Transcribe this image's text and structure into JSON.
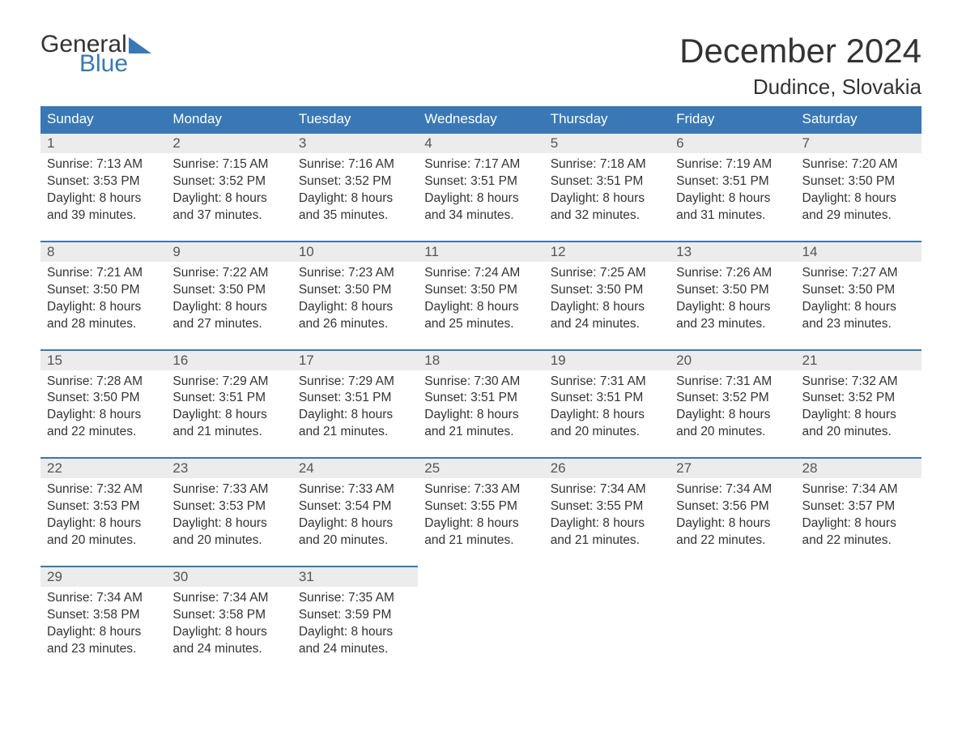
{
  "logo": {
    "line1": "General",
    "line2": "Blue"
  },
  "title": "December 2024",
  "location": "Dudince, Slovakia",
  "colors": {
    "header_bg": "#3a78b5",
    "header_text": "#ffffff",
    "daynum_bg": "#ececec",
    "daynum_text": "#555555",
    "body_text": "#333333",
    "row_border": "#3a78b5",
    "page_bg": "#ffffff",
    "logo_accent": "#3a78b5"
  },
  "daysOfWeek": [
    "Sunday",
    "Monday",
    "Tuesday",
    "Wednesday",
    "Thursday",
    "Friday",
    "Saturday"
  ],
  "weeks": [
    [
      {
        "n": "1",
        "sr": "7:13 AM",
        "ss": "3:53 PM",
        "dl": "8 hours and 39 minutes."
      },
      {
        "n": "2",
        "sr": "7:15 AM",
        "ss": "3:52 PM",
        "dl": "8 hours and 37 minutes."
      },
      {
        "n": "3",
        "sr": "7:16 AM",
        "ss": "3:52 PM",
        "dl": "8 hours and 35 minutes."
      },
      {
        "n": "4",
        "sr": "7:17 AM",
        "ss": "3:51 PM",
        "dl": "8 hours and 34 minutes."
      },
      {
        "n": "5",
        "sr": "7:18 AM",
        "ss": "3:51 PM",
        "dl": "8 hours and 32 minutes."
      },
      {
        "n": "6",
        "sr": "7:19 AM",
        "ss": "3:51 PM",
        "dl": "8 hours and 31 minutes."
      },
      {
        "n": "7",
        "sr": "7:20 AM",
        "ss": "3:50 PM",
        "dl": "8 hours and 29 minutes."
      }
    ],
    [
      {
        "n": "8",
        "sr": "7:21 AM",
        "ss": "3:50 PM",
        "dl": "8 hours and 28 minutes."
      },
      {
        "n": "9",
        "sr": "7:22 AM",
        "ss": "3:50 PM",
        "dl": "8 hours and 27 minutes."
      },
      {
        "n": "10",
        "sr": "7:23 AM",
        "ss": "3:50 PM",
        "dl": "8 hours and 26 minutes."
      },
      {
        "n": "11",
        "sr": "7:24 AM",
        "ss": "3:50 PM",
        "dl": "8 hours and 25 minutes."
      },
      {
        "n": "12",
        "sr": "7:25 AM",
        "ss": "3:50 PM",
        "dl": "8 hours and 24 minutes."
      },
      {
        "n": "13",
        "sr": "7:26 AM",
        "ss": "3:50 PM",
        "dl": "8 hours and 23 minutes."
      },
      {
        "n": "14",
        "sr": "7:27 AM",
        "ss": "3:50 PM",
        "dl": "8 hours and 23 minutes."
      }
    ],
    [
      {
        "n": "15",
        "sr": "7:28 AM",
        "ss": "3:50 PM",
        "dl": "8 hours and 22 minutes."
      },
      {
        "n": "16",
        "sr": "7:29 AM",
        "ss": "3:51 PM",
        "dl": "8 hours and 21 minutes."
      },
      {
        "n": "17",
        "sr": "7:29 AM",
        "ss": "3:51 PM",
        "dl": "8 hours and 21 minutes."
      },
      {
        "n": "18",
        "sr": "7:30 AM",
        "ss": "3:51 PM",
        "dl": "8 hours and 21 minutes."
      },
      {
        "n": "19",
        "sr": "7:31 AM",
        "ss": "3:51 PM",
        "dl": "8 hours and 20 minutes."
      },
      {
        "n": "20",
        "sr": "7:31 AM",
        "ss": "3:52 PM",
        "dl": "8 hours and 20 minutes."
      },
      {
        "n": "21",
        "sr": "7:32 AM",
        "ss": "3:52 PM",
        "dl": "8 hours and 20 minutes."
      }
    ],
    [
      {
        "n": "22",
        "sr": "7:32 AM",
        "ss": "3:53 PM",
        "dl": "8 hours and 20 minutes."
      },
      {
        "n": "23",
        "sr": "7:33 AM",
        "ss": "3:53 PM",
        "dl": "8 hours and 20 minutes."
      },
      {
        "n": "24",
        "sr": "7:33 AM",
        "ss": "3:54 PM",
        "dl": "8 hours and 20 minutes."
      },
      {
        "n": "25",
        "sr": "7:33 AM",
        "ss": "3:55 PM",
        "dl": "8 hours and 21 minutes."
      },
      {
        "n": "26",
        "sr": "7:34 AM",
        "ss": "3:55 PM",
        "dl": "8 hours and 21 minutes."
      },
      {
        "n": "27",
        "sr": "7:34 AM",
        "ss": "3:56 PM",
        "dl": "8 hours and 22 minutes."
      },
      {
        "n": "28",
        "sr": "7:34 AM",
        "ss": "3:57 PM",
        "dl": "8 hours and 22 minutes."
      }
    ],
    [
      {
        "n": "29",
        "sr": "7:34 AM",
        "ss": "3:58 PM",
        "dl": "8 hours and 23 minutes."
      },
      {
        "n": "30",
        "sr": "7:34 AM",
        "ss": "3:58 PM",
        "dl": "8 hours and 24 minutes."
      },
      {
        "n": "31",
        "sr": "7:35 AM",
        "ss": "3:59 PM",
        "dl": "8 hours and 24 minutes."
      },
      null,
      null,
      null,
      null
    ]
  ],
  "labels": {
    "sunrise": "Sunrise: ",
    "sunset": "Sunset: ",
    "daylight": "Daylight: "
  }
}
